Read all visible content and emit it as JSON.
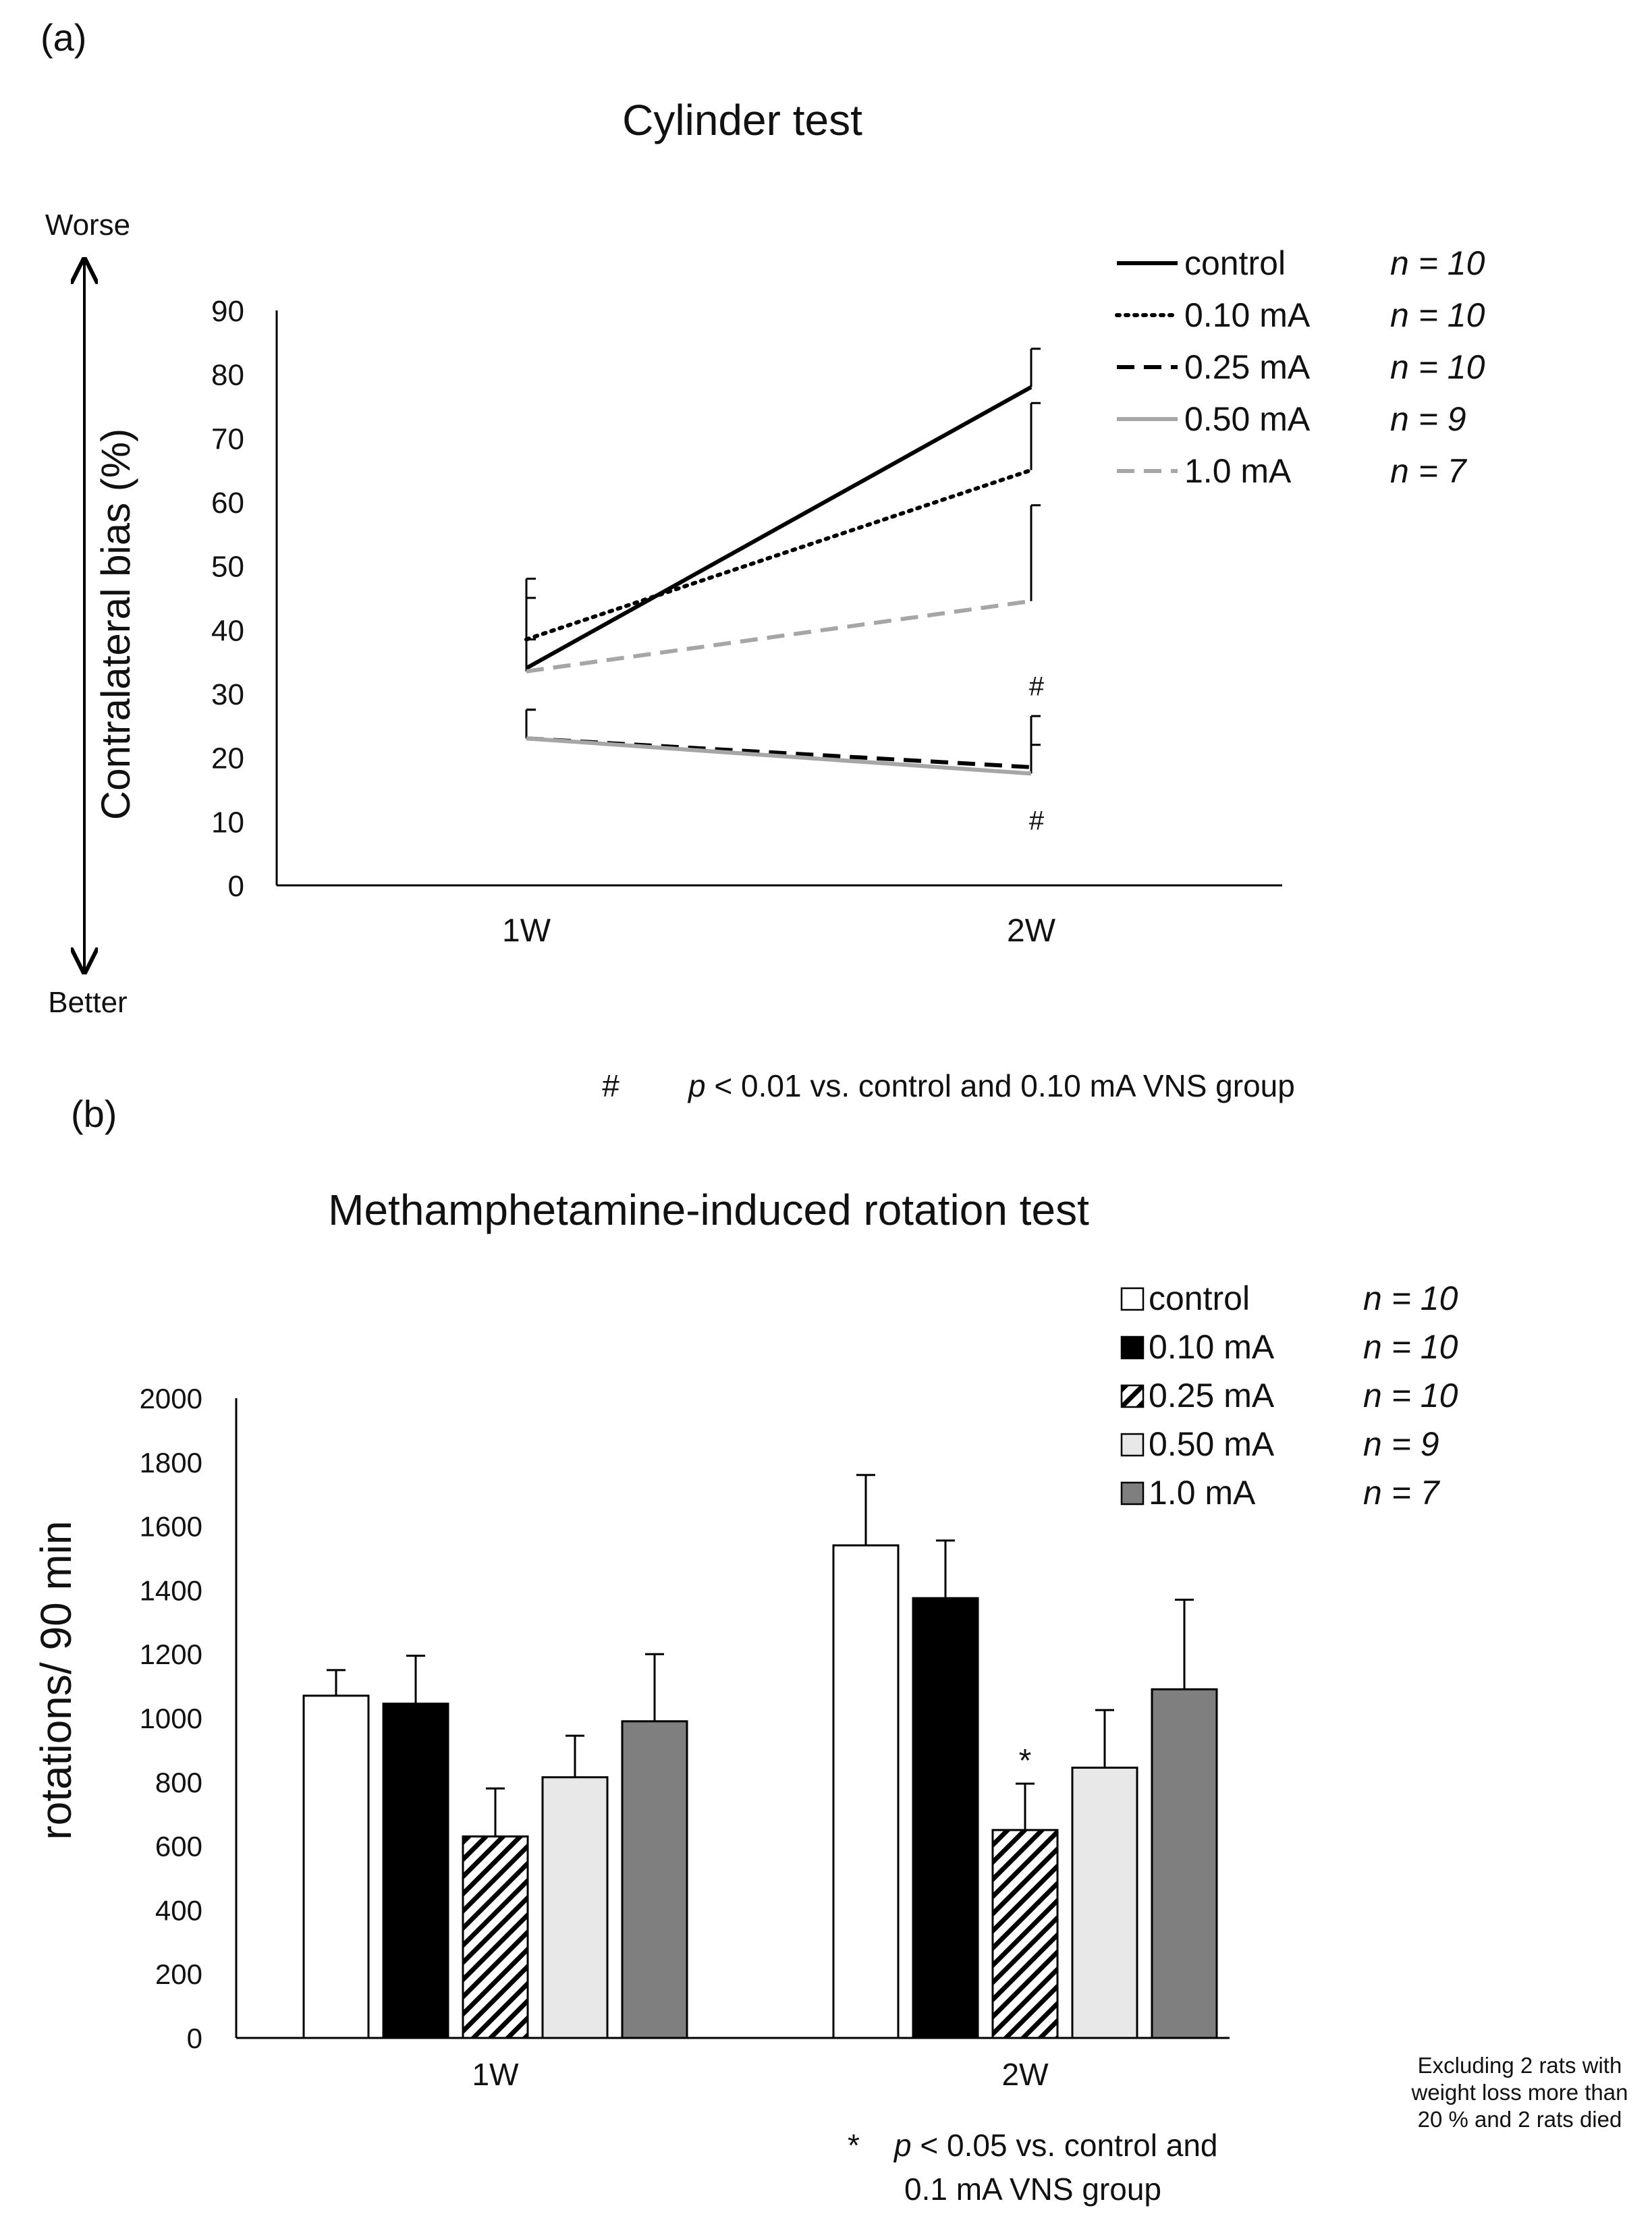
{
  "panel_a": {
    "label": "(a)",
    "worse_label": "Worse",
    "better_label": "Better",
    "legend_n": [
      "n = 10",
      "n = 10",
      "n = 10",
      "n = 9",
      "n = 7"
    ],
    "sig_mark": "#",
    "footnote_mark": "#",
    "footnote_p": "p",
    "footnote_rest": " < 0.01 vs. control and 0.10 mA VNS group"
  },
  "panel_b": {
    "label": "(b)",
    "legend_n": [
      "n = 10",
      "n = 10",
      "n = 10",
      "n = 9",
      "n = 7"
    ],
    "sig_mark": "*",
    "footnote_mark": "*",
    "footnote_p": "p",
    "footnote_line1_rest": " < 0.05 vs. control and",
    "footnote_line2": "0.1 mA VNS group",
    "side_note": [
      "Excluding 2 rats with",
      "weight loss more than",
      "20 % and 2 rats died"
    ]
  },
  "chart_data": [
    {
      "type": "line",
      "title": "Cylinder test",
      "xlabel": "",
      "ylabel": "Contralateral bias (%)",
      "categories": [
        "1W",
        "2W"
      ],
      "ylim": [
        0,
        90
      ],
      "yticks": [
        0,
        10,
        20,
        30,
        40,
        50,
        60,
        70,
        80,
        90
      ],
      "series": [
        {
          "name": "control",
          "values": [
            34,
            78
          ],
          "err": [
            14,
            6
          ],
          "style": "solid",
          "color": "#000000"
        },
        {
          "name": "0.10 mA",
          "values": [
            38.5,
            65
          ],
          "err": [
            6.5,
            10.5
          ],
          "style": "dotted",
          "color": "#000000"
        },
        {
          "name": "0.25 mA",
          "values": [
            23,
            18.5
          ],
          "err": [
            4.5,
            8
          ],
          "style": "dashed",
          "color": "#000000"
        },
        {
          "name": "0.50 mA",
          "values": [
            23,
            17.5
          ],
          "err": [
            4.5,
            4.5
          ],
          "style": "solid",
          "color": "#a6a6a6"
        },
        {
          "name": "1.0 mA",
          "values": [
            33.5,
            44.5
          ],
          "err": [
            5,
            15
          ],
          "style": "dashed",
          "color": "#a6a6a6"
        }
      ],
      "significance": [
        {
          "category": "2W",
          "mark": "#",
          "values": [
            31,
            10
          ]
        }
      ]
    },
    {
      "type": "bar",
      "title": "Methamphetamine-induced rotation test",
      "xlabel": "",
      "ylabel": "rotations/ 90 min",
      "categories": [
        "1W",
        "2W"
      ],
      "ylim": [
        0,
        2000
      ],
      "yticks": [
        0,
        200,
        400,
        600,
        800,
        1000,
        1200,
        1400,
        1600,
        1800,
        2000
      ],
      "series": [
        {
          "name": "control",
          "values": [
            1070,
            1540
          ],
          "err": [
            80,
            220
          ],
          "fill": "#ffffff"
        },
        {
          "name": "0.10 mA",
          "values": [
            1045,
            1375
          ],
          "err": [
            150,
            180
          ],
          "fill": "#000000"
        },
        {
          "name": "0.25 mA",
          "values": [
            630,
            650
          ],
          "err": [
            150,
            145
          ],
          "fill": "hatch"
        },
        {
          "name": "0.50 mA",
          "values": [
            815,
            845
          ],
          "err": [
            130,
            180
          ],
          "fill": "#e8e8e8"
        },
        {
          "name": "1.0 mA",
          "values": [
            990,
            1090
          ],
          "err": [
            210,
            280
          ],
          "fill": "#7f7f7f"
        }
      ],
      "significance": [
        {
          "category": "2W",
          "series": "0.25 mA",
          "mark": "*"
        }
      ]
    }
  ]
}
